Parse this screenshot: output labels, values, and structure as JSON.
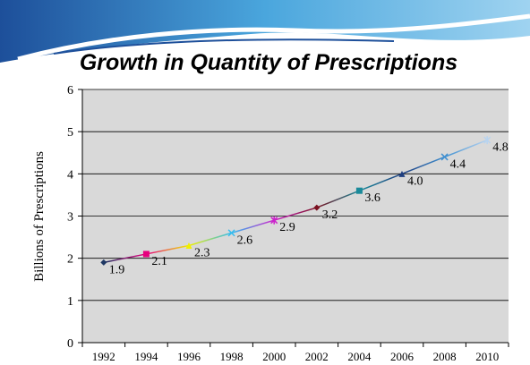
{
  "chart_data": {
    "type": "line",
    "title": "Growth in Quantity of Prescriptions",
    "y_label": "Billions of Prescriptions",
    "categories": [
      "1992",
      "1994",
      "1996",
      "1998",
      "2000",
      "2002",
      "2004",
      "2006",
      "2008",
      "2010"
    ],
    "values": [
      1.9,
      2.1,
      2.3,
      2.6,
      2.9,
      3.2,
      3.6,
      4.0,
      4.4,
      4.8
    ],
    "value_labels": [
      "1.9",
      "2.1",
      "2.3",
      "2.6",
      "2.9",
      "3.2",
      "3.6",
      "4.0",
      "4.4",
      "4.8"
    ],
    "colors": [
      "#1f3864",
      "#e6007e",
      "#f0f000",
      "#33bbee",
      "#cc22cc",
      "#7a1020",
      "#1a8a9a",
      "#1f3f80",
      "#3f8fd0",
      "#b8d4f0"
    ],
    "ylim": [
      0,
      6
    ],
    "yticks": [
      0,
      1,
      2,
      3,
      4,
      5,
      6
    ],
    "grid": true
  }
}
